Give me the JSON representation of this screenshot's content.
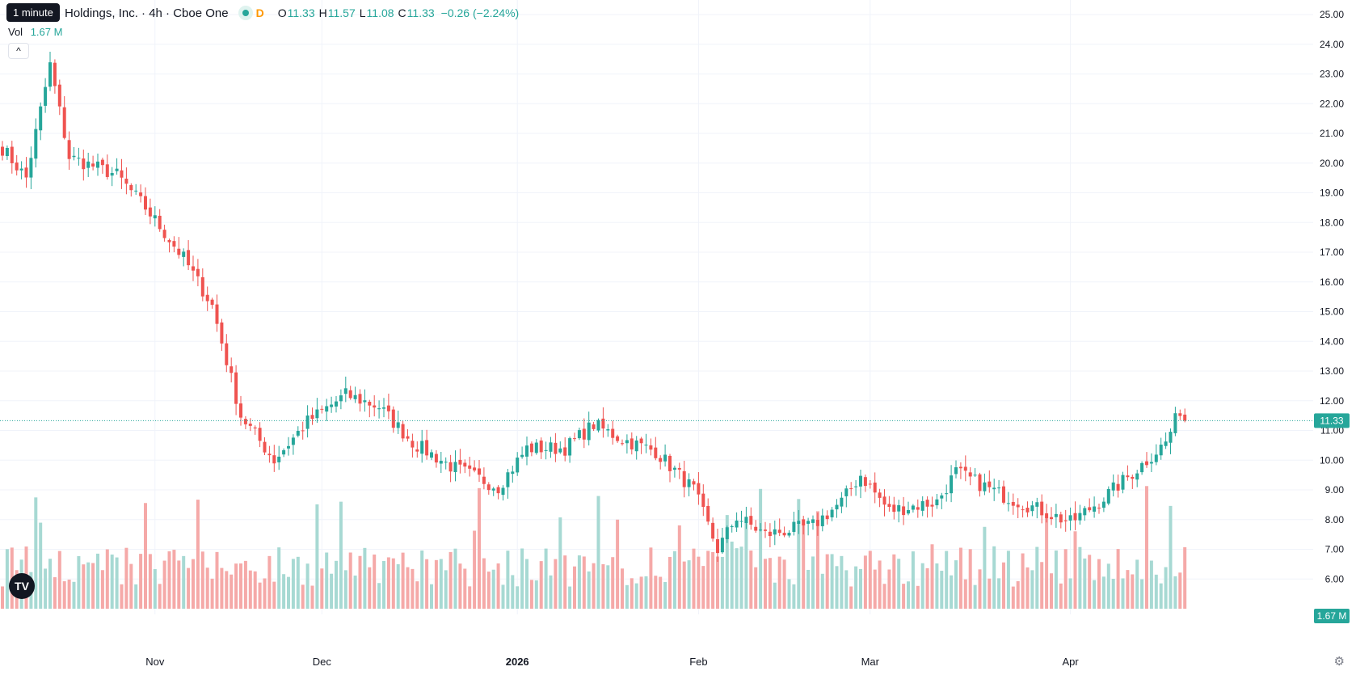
{
  "header": {
    "tooltip": "1 minute",
    "title": "Holdings, Inc. · 4h · Cboe One",
    "interval_badge": "D",
    "ohlc": {
      "o_label": "O",
      "o": "11.33",
      "h_label": "H",
      "h": "11.57",
      "l_label": "L",
      "l": "11.08",
      "c_label": "C",
      "c": "11.33",
      "change": "−0.26 (−2.24%)"
    },
    "volume_label": "Vol",
    "volume_value": "1.67 M"
  },
  "buttons": {
    "collapse": "^",
    "logo": "TV",
    "settings": "⚙"
  },
  "price_scale": {
    "ticks": [
      "25.00",
      "24.00",
      "23.00",
      "22.00",
      "21.00",
      "20.00",
      "19.00",
      "18.00",
      "17.00",
      "16.00",
      "15.00",
      "14.00",
      "13.00",
      "12.00",
      "11.00",
      "10.00",
      "9.00",
      "8.00",
      "7.00",
      "6.00"
    ],
    "last_price_tag": "11.33",
    "volume_tag": "1.67 M"
  },
  "time_scale": {
    "labels": [
      "Nov",
      "Dec",
      "2026",
      "Feb",
      "Mar",
      "Apr"
    ]
  },
  "colors": {
    "up": "#26a69a",
    "down": "#ef5350",
    "up_volume": "#a7d9d3",
    "down_volume": "#f5a9a8",
    "grid": "#f0f3fa",
    "text": "#131722"
  },
  "chart_data": {
    "type": "candlestick",
    "interval": "4h",
    "y_range": [
      5.5,
      25.3
    ],
    "last_price": 11.33,
    "anchors": [
      {
        "pos": 0,
        "price": 20.5
      },
      {
        "pos": 5,
        "price": 19.5
      },
      {
        "pos": 10,
        "price": 23.3
      },
      {
        "pos": 14,
        "price": 20.2
      },
      {
        "pos": 24,
        "price": 19.6
      },
      {
        "pos": 30,
        "price": 18.5
      },
      {
        "pos": 38,
        "price": 16.8
      },
      {
        "pos": 44,
        "price": 15.2
      },
      {
        "pos": 50,
        "price": 11.5
      },
      {
        "pos": 57,
        "price": 10.0
      },
      {
        "pos": 64,
        "price": 11.3
      },
      {
        "pos": 72,
        "price": 12.2
      },
      {
        "pos": 79,
        "price": 11.8
      },
      {
        "pos": 86,
        "price": 10.6
      },
      {
        "pos": 94,
        "price": 9.8
      },
      {
        "pos": 104,
        "price": 9.1
      },
      {
        "pos": 110,
        "price": 10.4
      },
      {
        "pos": 118,
        "price": 10.4
      },
      {
        "pos": 124,
        "price": 11.2
      },
      {
        "pos": 130,
        "price": 10.7
      },
      {
        "pos": 137,
        "price": 10.3
      },
      {
        "pos": 145,
        "price": 9.0
      },
      {
        "pos": 150,
        "price": 7.0
      },
      {
        "pos": 154,
        "price": 8.1
      },
      {
        "pos": 160,
        "price": 7.5
      },
      {
        "pos": 170,
        "price": 7.8
      },
      {
        "pos": 176,
        "price": 8.6
      },
      {
        "pos": 180,
        "price": 9.5
      },
      {
        "pos": 186,
        "price": 8.3
      },
      {
        "pos": 196,
        "price": 8.6
      },
      {
        "pos": 200,
        "price": 9.6
      },
      {
        "pos": 210,
        "price": 8.8
      },
      {
        "pos": 218,
        "price": 8.3
      },
      {
        "pos": 224,
        "price": 7.9
      },
      {
        "pos": 230,
        "price": 8.6
      },
      {
        "pos": 238,
        "price": 9.7
      },
      {
        "pos": 244,
        "price": 10.6
      },
      {
        "pos": 247,
        "price": 11.7
      },
      {
        "pos": 248,
        "price": 11.33
      }
    ],
    "volume_peak_millions": 3.4,
    "time_labels": [
      "Nov",
      "Dec",
      "2026",
      "Feb",
      "Mar",
      "Apr"
    ]
  }
}
